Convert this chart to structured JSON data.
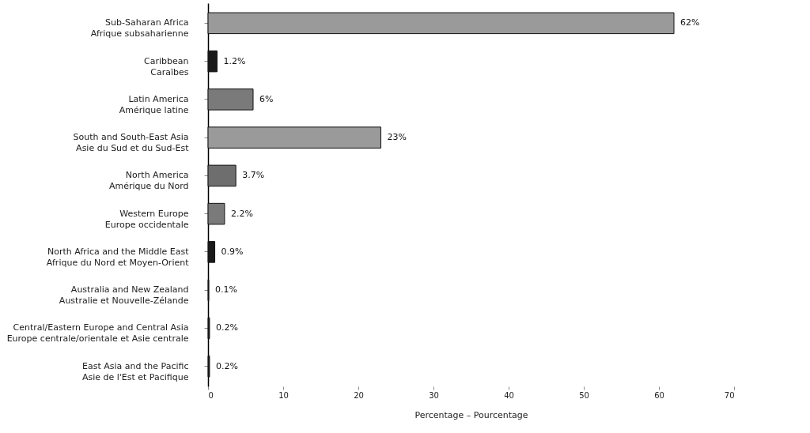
{
  "chart_data": {
    "type": "bar",
    "orientation": "horizontal",
    "categories": [
      "Sub-Saharan Africa\nAfrique subsaharienne",
      "Caribbean\nCaraïbes",
      "Latin America\nAmérique latine",
      "South and South-East Asia\nAsie du Sud et du Sud-Est",
      "North America\nAmérique du Nord",
      "Western Europe\nEurope occidentale",
      "North Africa and the Middle East\nAfrique du Nord et Moyen-Orient",
      "Australia and New Zealand\nAustralie et Nouvelle-Zélande",
      "Central/Eastern Europe and Central Asia\nEurope centrale/orientale et Asie centrale",
      "East Asia and the Pacific\nAsie de l'Est et Pacifique"
    ],
    "values": [
      62,
      1.2,
      6,
      23,
      3.7,
      2.2,
      0.9,
      0.1,
      0.2,
      0.2
    ],
    "colors": [
      "#9a9a9a",
      "#1a1a1a",
      "#7a7a7a",
      "#9a9a9a",
      "#6e6e6e",
      "#7a7a7a",
      "#1a1a1a",
      "#1a1a1a",
      "#1a1a1a",
      "#1a1a1a"
    ],
    "value_labels": [
      "62%",
      "1.2%",
      "6%",
      "23%",
      "3.7%",
      "2.2%",
      "0.9%",
      "0.1%",
      "0.2%",
      "0.2%"
    ],
    "xlabel": "Percentage – Pourcentage",
    "xlim": [
      0,
      70
    ],
    "xticks": [
      0,
      10,
      20,
      30,
      40,
      50,
      60,
      70
    ],
    "grid": false
  }
}
